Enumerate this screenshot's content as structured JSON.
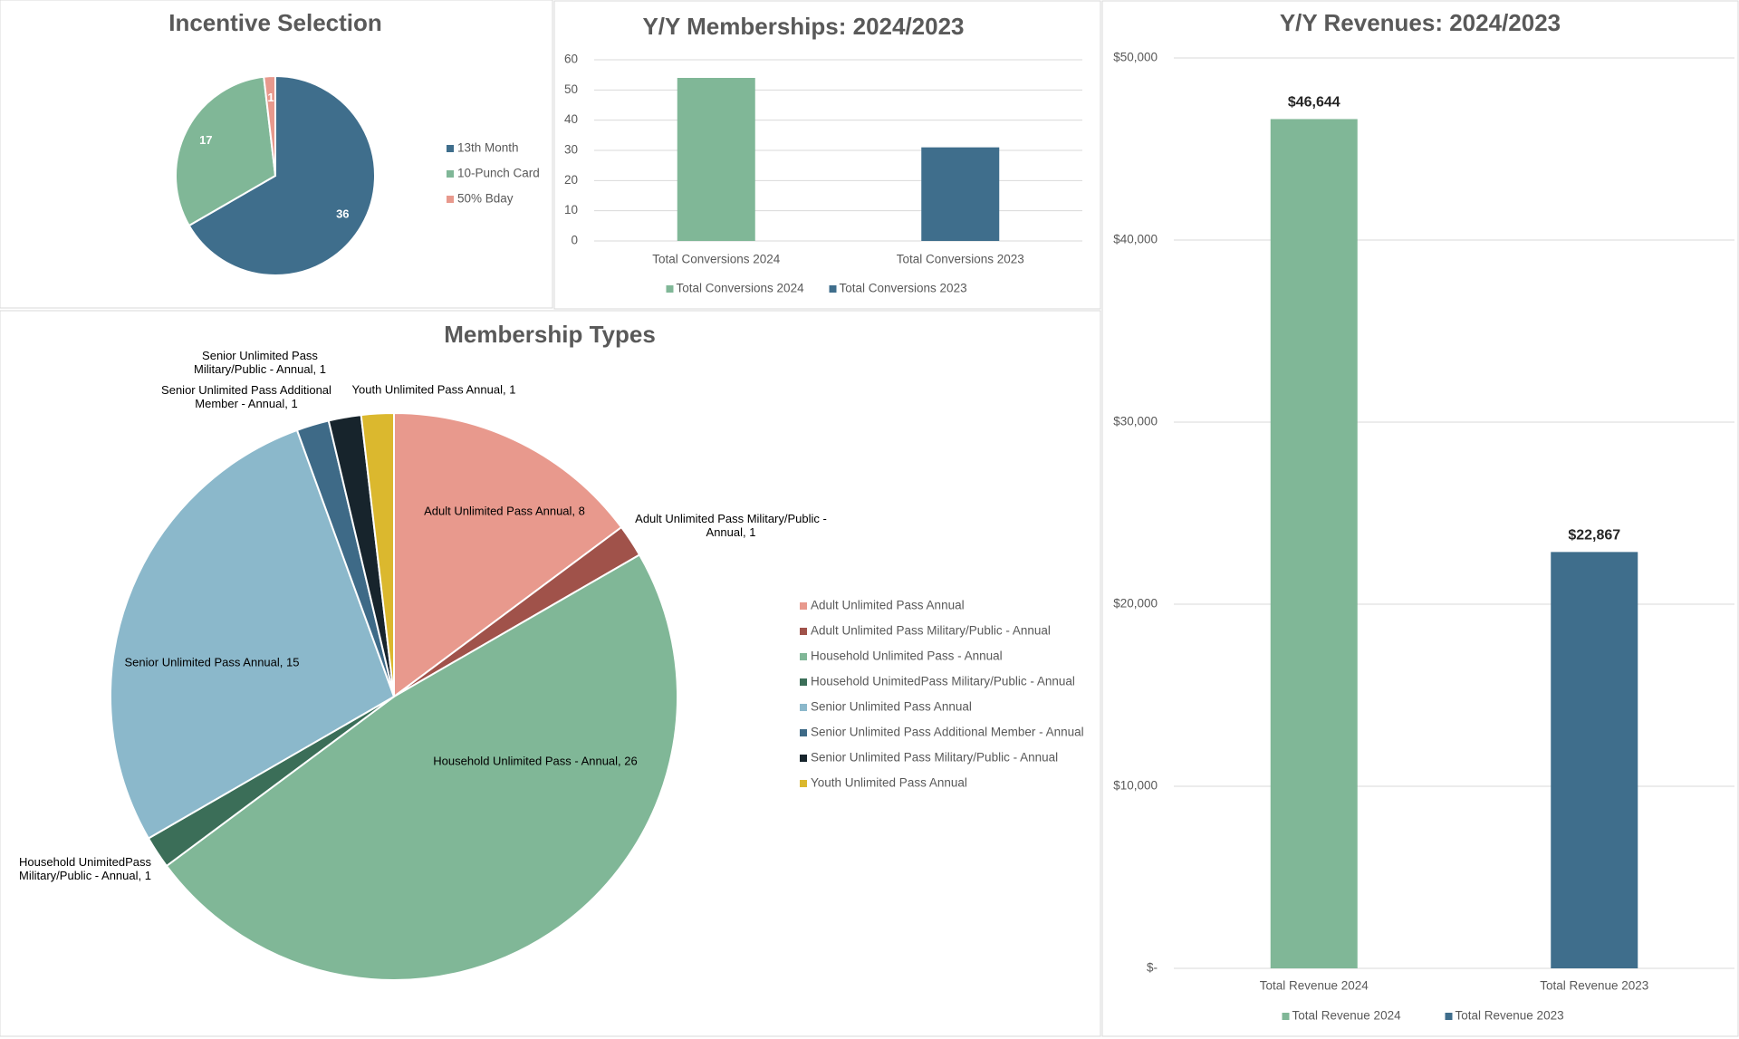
{
  "chart_data": [
    {
      "type": "pie",
      "title": "Incentive Selection",
      "categories": [
        "13th Month",
        "10-Punch Card",
        "50% Bday"
      ],
      "values": [
        36,
        17,
        1
      ],
      "colors": [
        "#3f6e8c",
        "#80b797",
        "#e8998d"
      ],
      "legend": "right"
    },
    {
      "type": "bar",
      "title": "Y/Y Memberships: 2024/2023",
      "categories": [
        "Total Conversions 2024",
        "Total Conversions 2023"
      ],
      "values": [
        54,
        31
      ],
      "colors": [
        "#80b797",
        "#3f6e8c"
      ],
      "ylim": [
        0,
        60
      ],
      "yticks": [
        0,
        10,
        20,
        30,
        40,
        50,
        60
      ],
      "grid": true,
      "legend": "bottom"
    },
    {
      "type": "pie",
      "title": "Membership Types",
      "categories": [
        "Adult Unlimited Pass Annual",
        "Adult Unlimited Pass Military/Public - Annual",
        "Household Unlimited Pass - Annual",
        "Household UnimitedPass Military/Public - Annual",
        "Senior Unlimited Pass Annual",
        "Senior Unlimited Pass Additional Member - Annual",
        "Senior Unlimited Pass Military/Public - Annual",
        "Youth Unlimited Pass Annual"
      ],
      "values": [
        8,
        1,
        26,
        1,
        15,
        1,
        1,
        1
      ],
      "value_labels": [
        "Adult Unlimited Pass Annual, 8",
        "Adult Unlimited Pass Military/Public - Annual, 1",
        "Household Unlimited Pass - Annual, 26",
        "Household UnimitedPass Military/Public - Annual, 1",
        "Senior Unlimited Pass Annual, 15",
        "Senior Unlimited Pass Additional Member - Annual, 1",
        "Senior Unlimited Pass Military/Public - Annual, 1",
        "Youth Unlimited Pass Annual, 1"
      ],
      "colors": [
        "#e8998d",
        "#a0524a",
        "#80b797",
        "#3b6e58",
        "#8bb8cb",
        "#3e6a87",
        "#17242c",
        "#dbb82e"
      ],
      "legend": "right"
    },
    {
      "type": "bar",
      "title": "Y/Y Revenues: 2024/2023",
      "categories": [
        "Total Revenue 2024",
        "Total Revenue 2023"
      ],
      "values": [
        46644,
        22867
      ],
      "value_labels": [
        "$46,644",
        "$22,867"
      ],
      "colors": [
        "#80b797",
        "#3f6e8c"
      ],
      "ylim": [
        0,
        50000
      ],
      "yticks": [
        {
          "value": 0,
          "label": "$-"
        },
        {
          "value": 10000,
          "label": "$10,000"
        },
        {
          "value": 20000,
          "label": "$20,000"
        },
        {
          "value": 30000,
          "label": "$30,000"
        },
        {
          "value": 40000,
          "label": "$40,000"
        },
        {
          "value": 50000,
          "label": "$50,000"
        }
      ],
      "grid": true,
      "legend": "bottom"
    }
  ]
}
